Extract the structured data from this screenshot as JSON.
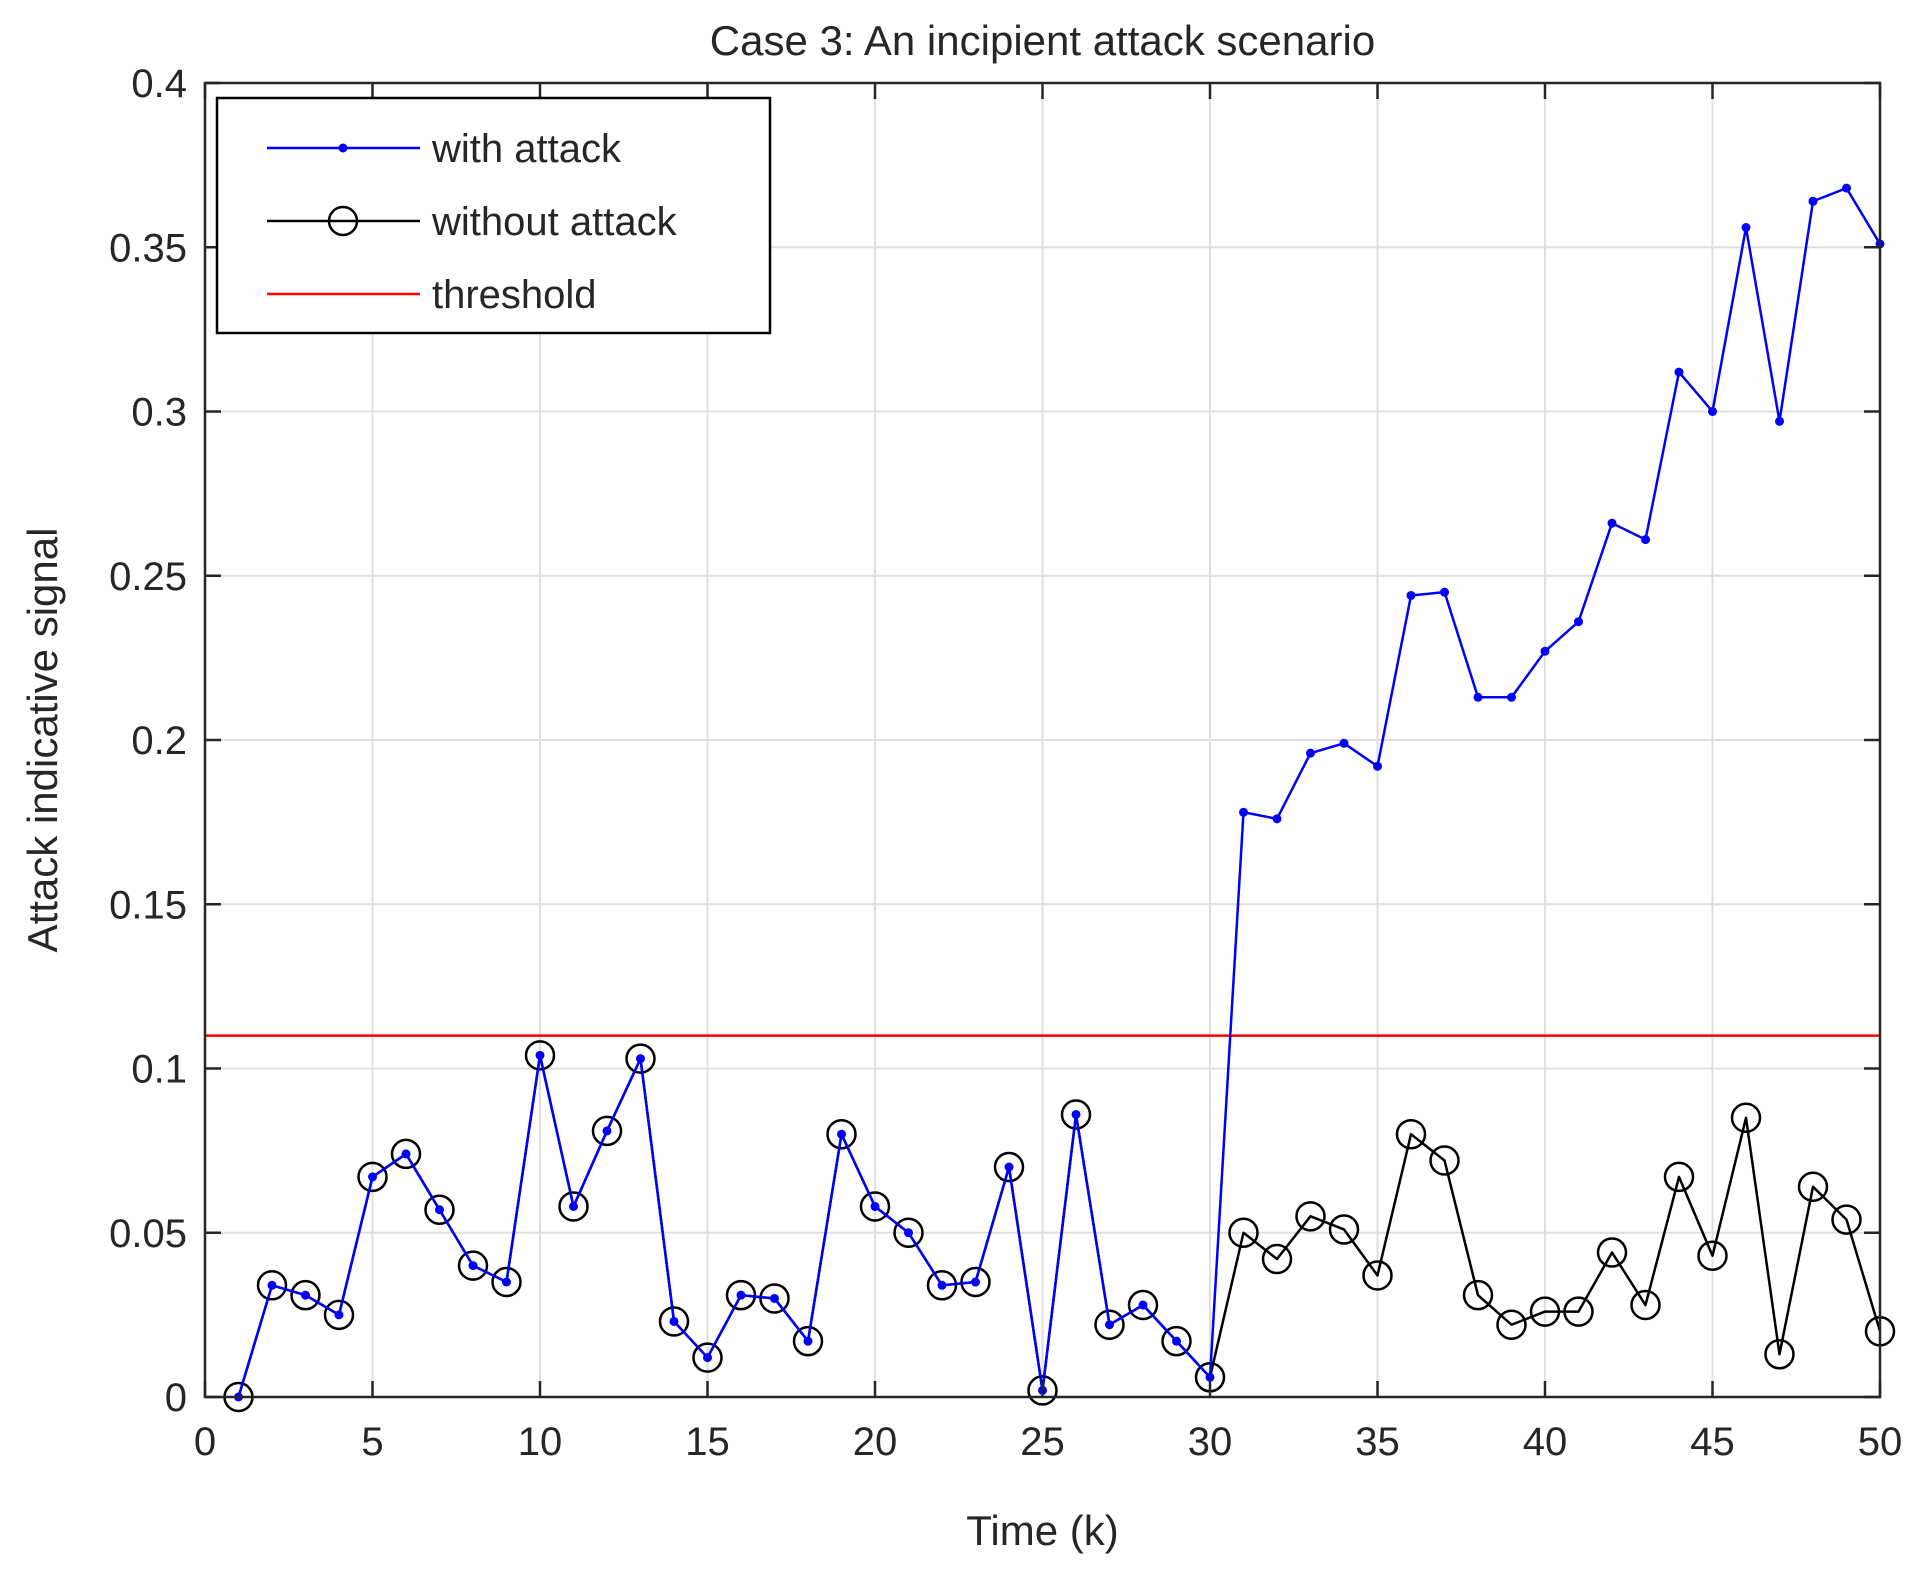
{
  "chart_data": {
    "type": "line",
    "title": "Case 3: An incipient attack scenario",
    "xlabel": "Time (k)",
    "ylabel": "Attack indicative signal",
    "xlim": [
      0,
      50
    ],
    "ylim": [
      0,
      0.4
    ],
    "xticks": [
      0,
      5,
      10,
      15,
      20,
      25,
      30,
      35,
      40,
      45,
      50
    ],
    "yticks": [
      0,
      0.05,
      0.1,
      0.15,
      0.2,
      0.25,
      0.3,
      0.35,
      0.4
    ],
    "xtick_labels": [
      "0",
      "5",
      "10",
      "15",
      "20",
      "25",
      "30",
      "35",
      "40",
      "45",
      "50"
    ],
    "ytick_labels": [
      "0",
      "0.05",
      "0.1",
      "0.15",
      "0.2",
      "0.25",
      "0.3",
      "0.35",
      "0.4"
    ],
    "grid": true,
    "legend_position": "top-left",
    "x": [
      1,
      2,
      3,
      4,
      5,
      6,
      7,
      8,
      9,
      10,
      11,
      12,
      13,
      14,
      15,
      16,
      17,
      18,
      19,
      20,
      21,
      22,
      23,
      24,
      25,
      26,
      27,
      28,
      29,
      30,
      31,
      32,
      33,
      34,
      35,
      36,
      37,
      38,
      39,
      40,
      41,
      42,
      43,
      44,
      45,
      46,
      47,
      48,
      49,
      50
    ],
    "series": [
      {
        "name": "with attack",
        "color": "#0000ff",
        "marker": "dot",
        "values": [
          0.0,
          0.034,
          0.031,
          0.025,
          0.067,
          0.074,
          0.057,
          0.04,
          0.035,
          0.104,
          0.058,
          0.081,
          0.103,
          0.023,
          0.012,
          0.031,
          0.03,
          0.017,
          0.08,
          0.058,
          0.05,
          0.034,
          0.035,
          0.07,
          0.002,
          0.086,
          0.022,
          0.028,
          0.017,
          0.006,
          0.178,
          0.176,
          0.196,
          0.199,
          0.192,
          0.244,
          0.245,
          0.213,
          0.213,
          0.227,
          0.236,
          0.266,
          0.261,
          0.312,
          0.3,
          0.356,
          0.297,
          0.364,
          0.368,
          0.351
        ]
      },
      {
        "name": "without attack",
        "color": "#000000",
        "marker": "circle",
        "values": [
          0.0,
          0.034,
          0.031,
          0.025,
          0.067,
          0.074,
          0.057,
          0.04,
          0.035,
          0.104,
          0.058,
          0.081,
          0.103,
          0.023,
          0.012,
          0.031,
          0.03,
          0.017,
          0.08,
          0.058,
          0.05,
          0.034,
          0.035,
          0.07,
          0.002,
          0.086,
          0.022,
          0.028,
          0.017,
          0.006,
          0.05,
          0.042,
          0.055,
          0.051,
          0.037,
          0.08,
          0.072,
          0.031,
          0.022,
          0.026,
          0.026,
          0.044,
          0.028,
          0.067,
          0.043,
          0.085,
          0.013,
          0.064,
          0.054,
          0.02
        ]
      },
      {
        "name": "threshold",
        "color": "#ff0000",
        "marker": "none",
        "constant": 0.11
      }
    ]
  }
}
